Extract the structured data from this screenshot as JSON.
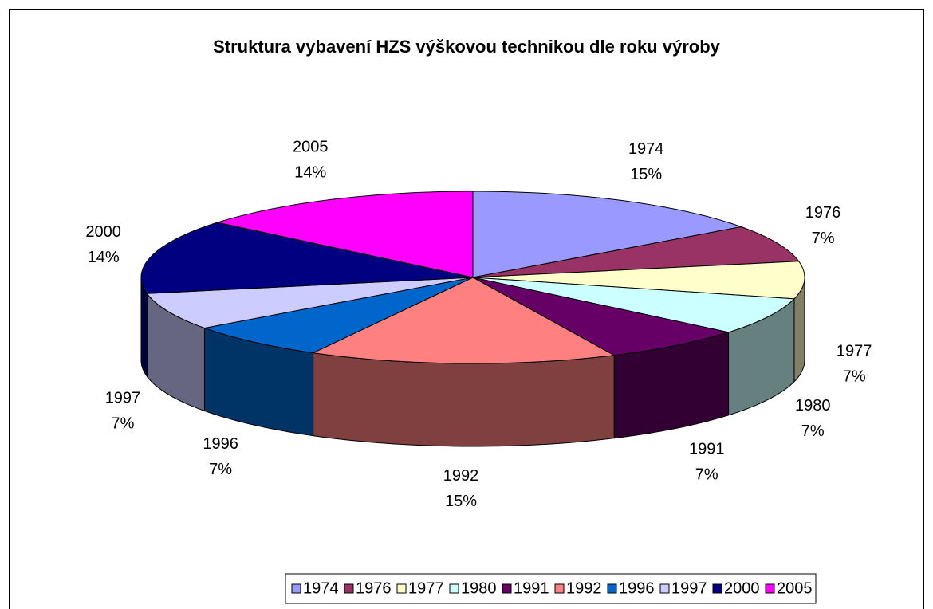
{
  "chart_data": {
    "type": "pie",
    "title": "Struktura vybavení HZS výškovou technikou dle roku výroby",
    "categories": [
      "1974",
      "1976",
      "1977",
      "1980",
      "1991",
      "1992",
      "1996",
      "1997",
      "2000",
      "2005"
    ],
    "values": [
      15,
      7,
      7,
      7,
      7,
      15,
      7,
      7,
      14,
      14
    ],
    "value_labels": [
      "15%",
      "7%",
      "7%",
      "7%",
      "7%",
      "15%",
      "7%",
      "7%",
      "14%",
      "14%"
    ],
    "colors": [
      "#9999FF",
      "#993366",
      "#FFFFCC",
      "#CCFFFF",
      "#660066",
      "#FF8080",
      "#0066CC",
      "#CCCCFF",
      "#000080",
      "#FF00FF"
    ],
    "legend": "bottom"
  }
}
